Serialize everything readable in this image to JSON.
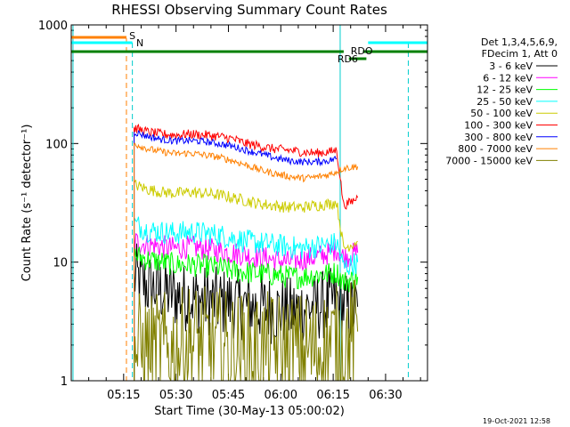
{
  "chart_data": {
    "type": "line",
    "title": "RHESSI Observing Summary Count Rates",
    "xlabel": "Start Time (30-May-13 05:00:02)",
    "ylabel": "Count Rate (s⁻¹ detector⁻¹)",
    "ylog": true,
    "ylim": [
      1,
      1000
    ],
    "xlim_minutes": [
      0,
      102
    ],
    "x_ticks": [
      {
        "m": 15,
        "label": "05:15"
      },
      {
        "m": 30,
        "label": "05:30"
      },
      {
        "m": 45,
        "label": "05:45"
      },
      {
        "m": 60,
        "label": "06:00"
      },
      {
        "m": 75,
        "label": "06:15"
      },
      {
        "m": 90,
        "label": "06:30"
      }
    ],
    "y_ticks": [
      {
        "v": 1,
        "label": "1"
      },
      {
        "v": 10,
        "label": "10"
      },
      {
        "v": 100,
        "label": "100"
      },
      {
        "v": 1000,
        "label": "1000"
      }
    ],
    "legend_header": [
      "Det 1,3,4,5,6,9,",
      "FDecim 1, Att 0"
    ],
    "series": [
      {
        "name": "3 - 6 keV",
        "color": "#000000",
        "x": [
          18,
          20,
          22,
          24,
          26,
          28,
          30,
          34,
          38,
          42,
          46,
          50,
          54,
          58,
          62,
          66,
          70,
          74,
          76,
          78,
          80,
          82
        ],
        "values": [
          7.5,
          6.8,
          6.2,
          6.0,
          5.8,
          5.5,
          5.2,
          5.0,
          4.8,
          4.6,
          4.5,
          4.3,
          4.2,
          4.0,
          3.8,
          4.0,
          4.2,
          4.5,
          4.8,
          4.3,
          3.8,
          4.2
        ],
        "noise": 0.3
      },
      {
        "name": "6 - 12 keV",
        "color": "#ff00ff",
        "x": [
          18,
          22,
          26,
          30,
          34,
          38,
          42,
          46,
          50,
          54,
          58,
          62,
          66,
          70,
          74,
          76,
          78,
          80,
          82
        ],
        "values": [
          15,
          14,
          13.5,
          13,
          13.5,
          13,
          12.5,
          12,
          11.5,
          11,
          10.5,
          10,
          10.5,
          11,
          12,
          13,
          11,
          11.5,
          12
        ],
        "noise": 0.1
      },
      {
        "name": "12 - 25 keV",
        "color": "#00ff00",
        "x": [
          18,
          22,
          26,
          30,
          34,
          38,
          42,
          46,
          50,
          54,
          58,
          62,
          66,
          70,
          74,
          76,
          78,
          80,
          82
        ],
        "values": [
          11.5,
          10.5,
          10,
          9.5,
          9.5,
          9.3,
          9,
          8.5,
          8.2,
          8,
          7.8,
          7.5,
          7.5,
          7.8,
          8,
          8.2,
          6.8,
          7,
          7.5
        ],
        "noise": 0.1
      },
      {
        "name": "25 - 50 keV",
        "color": "#00ffff",
        "x": [
          18,
          22,
          26,
          30,
          34,
          38,
          42,
          46,
          50,
          54,
          58,
          62,
          66,
          70,
          74,
          76,
          78,
          80,
          82
        ],
        "values": [
          21,
          18.5,
          18,
          17.5,
          18,
          17.5,
          17,
          16,
          15,
          14.5,
          14,
          13.5,
          13,
          13.5,
          14,
          14.5,
          9,
          9.5,
          10
        ],
        "noise": 0.1
      },
      {
        "name": "50 - 100 keV",
        "color": "#cccc00",
        "x": [
          18,
          22,
          26,
          30,
          34,
          38,
          42,
          46,
          50,
          54,
          58,
          62,
          66,
          70,
          74,
          76,
          78,
          80,
          82
        ],
        "values": [
          45,
          41,
          39,
          38,
          39,
          38,
          37,
          35,
          33,
          31,
          30,
          29,
          29,
          30,
          31,
          32,
          13,
          14,
          15
        ],
        "noise": 0.05
      },
      {
        "name": "100 - 300 keV",
        "color": "#ff0000",
        "x": [
          18,
          22,
          26,
          30,
          34,
          38,
          42,
          46,
          50,
          54,
          58,
          62,
          66,
          70,
          74,
          76,
          78,
          80,
          82
        ],
        "values": [
          135,
          125,
          120,
          118,
          120,
          118,
          115,
          110,
          100,
          95,
          90,
          88,
          85,
          83,
          85,
          88,
          30,
          32,
          35
        ],
        "noise": 0.04
      },
      {
        "name": "300 - 800 keV",
        "color": "#0000ff",
        "x": [
          18,
          22,
          26,
          30,
          34,
          38,
          42,
          46,
          50,
          54,
          58,
          62,
          66,
          70,
          74,
          76
        ],
        "values": [
          125,
          115,
          108,
          105,
          106,
          104,
          100,
          95,
          88,
          82,
          76,
          72,
          70,
          70,
          72,
          75
        ],
        "noise": 0.03
      },
      {
        "name": "800 - 7000 keV",
        "color": "#ff8000",
        "x": [
          18,
          22,
          26,
          30,
          34,
          38,
          42,
          46,
          50,
          54,
          58,
          62,
          66,
          70,
          74,
          76,
          78,
          80,
          82
        ],
        "values": [
          100,
          90,
          85,
          82,
          83,
          80,
          77,
          72,
          66,
          60,
          56,
          53,
          51,
          52,
          55,
          58,
          62,
          63,
          64
        ],
        "noise": 0.03
      },
      {
        "name": "7000 - 15000 keV",
        "color": "#808000",
        "x": [
          18,
          22,
          26,
          30,
          34,
          38,
          42,
          46,
          50,
          54,
          58,
          62,
          66,
          70,
          74,
          76,
          78,
          80,
          82
        ],
        "values": [
          1.8,
          1.8,
          1.8,
          1.8,
          2.2,
          2.0,
          2.0,
          1.8,
          1.8,
          1.8,
          1.8,
          1.8,
          1.8,
          1.8,
          2.0,
          2.0,
          2.0,
          2.3,
          2.6
        ],
        "noise": 0.5
      }
    ],
    "annotations": {
      "s_label": "S",
      "n_label": "N",
      "rd6_label": "RD6",
      "rdo_label": "RDO",
      "footer_date": "19-Oct-2021 12:58"
    }
  }
}
